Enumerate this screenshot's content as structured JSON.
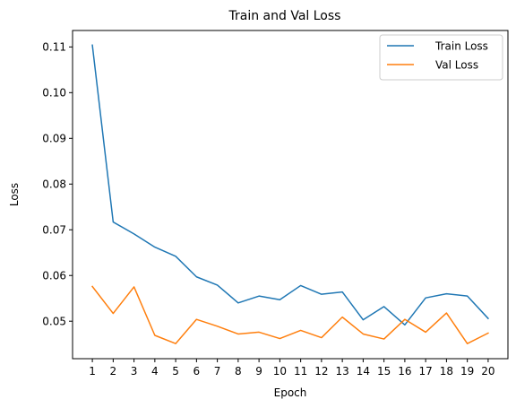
{
  "chart_data": {
    "type": "line",
    "title": "Train and Val Loss",
    "xlabel": "Epoch",
    "ylabel": "Loss",
    "x": [
      1,
      2,
      3,
      4,
      5,
      6,
      7,
      8,
      9,
      10,
      11,
      12,
      13,
      14,
      15,
      16,
      17,
      18,
      19,
      20
    ],
    "x_ticks": [
      "1",
      "2",
      "3",
      "4",
      "5",
      "6",
      "7",
      "8",
      "9",
      "10",
      "11",
      "12",
      "13",
      "14",
      "15",
      "16",
      "17",
      "18",
      "19",
      "20"
    ],
    "y_ticks": [
      0.05,
      0.06,
      0.07,
      0.08,
      0.09,
      0.1,
      0.11
    ],
    "y_tick_labels": [
      "0.05",
      "0.06",
      "0.07",
      "0.08",
      "0.09",
      "0.10",
      "0.11"
    ],
    "xlim": [
      0.05,
      20.95
    ],
    "ylim": [
      0.0418,
      0.1136
    ],
    "grid": false,
    "legend_position": "top-right",
    "series": [
      {
        "name": "Train Loss",
        "color": "#1f77b4",
        "values": [
          0.1104,
          0.0717,
          0.0691,
          0.0662,
          0.0642,
          0.0597,
          0.0579,
          0.054,
          0.0555,
          0.0547,
          0.0578,
          0.0559,
          0.0564,
          0.0503,
          0.0532,
          0.0492,
          0.0551,
          0.056,
          0.0555,
          0.0506
        ]
      },
      {
        "name": "Val Loss",
        "color": "#ff7f0e",
        "values": [
          0.0576,
          0.0517,
          0.0575,
          0.0469,
          0.0451,
          0.0504,
          0.0489,
          0.0472,
          0.0476,
          0.0462,
          0.048,
          0.0464,
          0.0509,
          0.0472,
          0.0461,
          0.0504,
          0.0476,
          0.0518,
          0.0451,
          0.0474
        ]
      }
    ]
  }
}
